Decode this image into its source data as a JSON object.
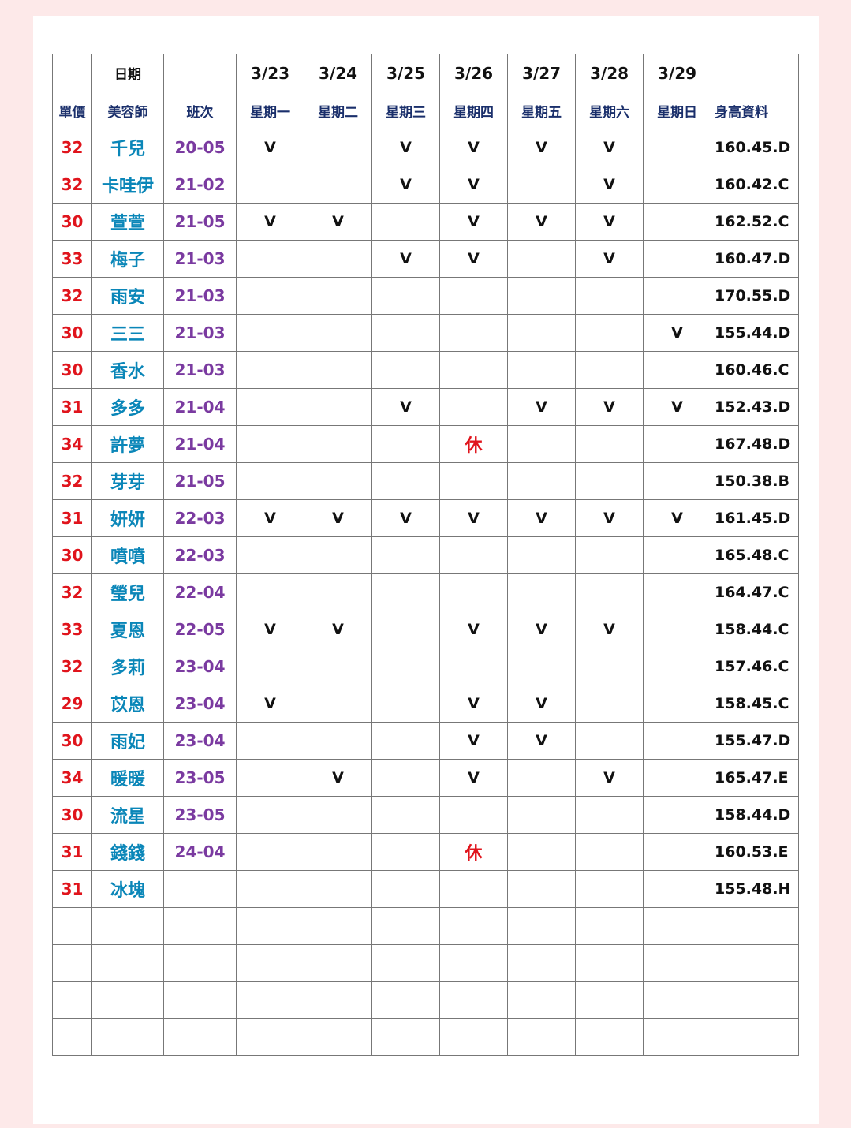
{
  "header": {
    "date_label": "日期",
    "dates": [
      "3/23",
      "3/24",
      "3/25",
      "3/26",
      "3/27",
      "3/28",
      "3/29"
    ],
    "price_label": "單價",
    "stylist_label": "美容師",
    "shift_label": "班次",
    "weekdays": [
      "星期一",
      "星期二",
      "星期三",
      "星期四",
      "星期五",
      "星期六",
      "星期日"
    ],
    "height_label": "身高資料"
  },
  "colors": {
    "saturday": "#0ba24a",
    "sunday": "#e0141c",
    "price": "#e0141c",
    "name": "#0a86b8",
    "shift": "#7a3aa0"
  },
  "rows": [
    {
      "price": "32",
      "name": "千兒",
      "shift": "20-05",
      "days": [
        "V",
        "",
        "V",
        "V",
        "V",
        "V",
        ""
      ],
      "height": "160.45.D"
    },
    {
      "price": "32",
      "name": "卡哇伊",
      "shift": "21-02",
      "days": [
        "",
        "",
        "V",
        "V",
        "",
        "V",
        ""
      ],
      "height": "160.42.C"
    },
    {
      "price": "30",
      "name": "萱萱",
      "shift": "21-05",
      "days": [
        "V",
        "V",
        "",
        "V",
        "V",
        "V",
        ""
      ],
      "height": "162.52.C"
    },
    {
      "price": "33",
      "name": "梅子",
      "shift": "21-03",
      "days": [
        "",
        "",
        "V",
        "V",
        "",
        "V",
        ""
      ],
      "height": "160.47.D"
    },
    {
      "price": "32",
      "name": "雨安",
      "shift": "21-03",
      "days": [
        "",
        "",
        "",
        "",
        "",
        "",
        ""
      ],
      "height": "170.55.D"
    },
    {
      "price": "30",
      "name": "三三",
      "shift": "21-03",
      "days": [
        "",
        "",
        "",
        "",
        "",
        "",
        "V"
      ],
      "height": "155.44.D"
    },
    {
      "price": "30",
      "name": "香水",
      "shift": "21-03",
      "days": [
        "",
        "",
        "",
        "",
        "",
        "",
        ""
      ],
      "height": "160.46.C"
    },
    {
      "price": "31",
      "name": "多多",
      "shift": "21-04",
      "days": [
        "",
        "",
        "V",
        "",
        "V",
        "V",
        "V"
      ],
      "height": "152.43.D"
    },
    {
      "price": "34",
      "name": "許夢",
      "shift": "21-04",
      "days": [
        "",
        "",
        "",
        "休",
        "",
        "",
        ""
      ],
      "height": "167.48.D"
    },
    {
      "price": "32",
      "name": "芽芽",
      "shift": "21-05",
      "days": [
        "",
        "",
        "",
        "",
        "",
        "",
        ""
      ],
      "height": "150.38.B"
    },
    {
      "price": "31",
      "name": "妍妍",
      "shift": "22-03",
      "days": [
        "V",
        "V",
        "V",
        "V",
        "V",
        "V",
        "V"
      ],
      "height": "161.45.D"
    },
    {
      "price": "30",
      "name": "噴噴",
      "shift": "22-03",
      "days": [
        "",
        "",
        "",
        "",
        "",
        "",
        ""
      ],
      "height": "165.48.C"
    },
    {
      "price": "32",
      "name": "瑩兒",
      "shift": "22-04",
      "days": [
        "",
        "",
        "",
        "",
        "",
        "",
        ""
      ],
      "height": "164.47.C"
    },
    {
      "price": "33",
      "name": "夏恩",
      "shift": "22-05",
      "days": [
        "V",
        "V",
        "",
        "V",
        "V",
        "V",
        ""
      ],
      "height": "158.44.C"
    },
    {
      "price": "32",
      "name": "多莉",
      "shift": "23-04",
      "days": [
        "",
        "",
        "",
        "",
        "",
        "",
        ""
      ],
      "height": "157.46.C"
    },
    {
      "price": "29",
      "name": "苡恩",
      "shift": "23-04",
      "days": [
        "V",
        "",
        "",
        "V",
        "V",
        "",
        ""
      ],
      "height": "158.45.C"
    },
    {
      "price": "30",
      "name": "雨妃",
      "shift": "23-04",
      "days": [
        "",
        "",
        "",
        "V",
        "V",
        "",
        ""
      ],
      "height": "155.47.D"
    },
    {
      "price": "34",
      "name": "暖暖",
      "shift": "23-05",
      "days": [
        "",
        "V",
        "",
        "V",
        "",
        "V",
        ""
      ],
      "height": "165.47.E"
    },
    {
      "price": "30",
      "name": "流星",
      "shift": "23-05",
      "days": [
        "",
        "",
        "",
        "",
        "",
        "",
        ""
      ],
      "height": "158.44.D"
    },
    {
      "price": "31",
      "name": "錢錢",
      "shift": "24-04",
      "days": [
        "",
        "",
        "",
        "休",
        "",
        "",
        ""
      ],
      "height": "160.53.E"
    },
    {
      "price": "31",
      "name": "冰塊",
      "shift": "",
      "days": [
        "",
        "",
        "",
        "",
        "",
        "",
        ""
      ],
      "height": "155.48.H"
    }
  ],
  "empty_rows": 4
}
